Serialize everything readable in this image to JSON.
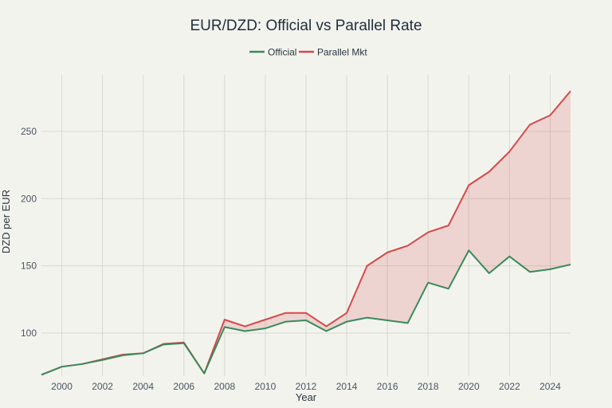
{
  "chart_data": {
    "type": "line",
    "title": "EUR/DZD: Official vs Parallel Rate",
    "xlabel": "Year",
    "ylabel": "DZD per EUR",
    "xlim": [
      1999,
      2025
    ],
    "ylim": [
      68,
      292
    ],
    "x_ticks": [
      2000,
      2002,
      2004,
      2006,
      2008,
      2010,
      2012,
      2014,
      2016,
      2018,
      2020,
      2022,
      2024
    ],
    "y_ticks": [
      100,
      150,
      200,
      250
    ],
    "grid": true,
    "legend_position": "top-center",
    "x": [
      1999,
      2000,
      2001,
      2002,
      2003,
      2004,
      2005,
      2006,
      2007,
      2008,
      2009,
      2010,
      2011,
      2012,
      2013,
      2014,
      2015,
      2016,
      2017,
      2018,
      2019,
      2020,
      2021,
      2022,
      2023,
      2024,
      2025
    ],
    "series": [
      {
        "name": "Official",
        "color": "#3a8a5a",
        "values": [
          69,
          75,
          77,
          80,
          83.5,
          85,
          91.5,
          92.5,
          70,
          104.5,
          101.5,
          103.5,
          108.5,
          109.5,
          101.5,
          108.5,
          111.5,
          109.5,
          107.5,
          137.5,
          133,
          161.5,
          144.5,
          157,
          145.5,
          147.5,
          151
        ]
      },
      {
        "name": "Parallel Mkt",
        "color": "#d44a4a",
        "values": [
          69,
          75,
          77,
          80.5,
          84,
          85,
          92,
          93,
          70,
          110,
          105,
          110,
          115,
          115,
          105,
          115,
          150,
          160,
          165,
          175,
          180,
          210,
          220,
          235,
          255,
          262,
          280
        ]
      }
    ],
    "fill_between": {
      "series": [
        "Official",
        "Parallel Mkt"
      ],
      "color": "#d44a4a",
      "opacity": 0.18
    }
  }
}
